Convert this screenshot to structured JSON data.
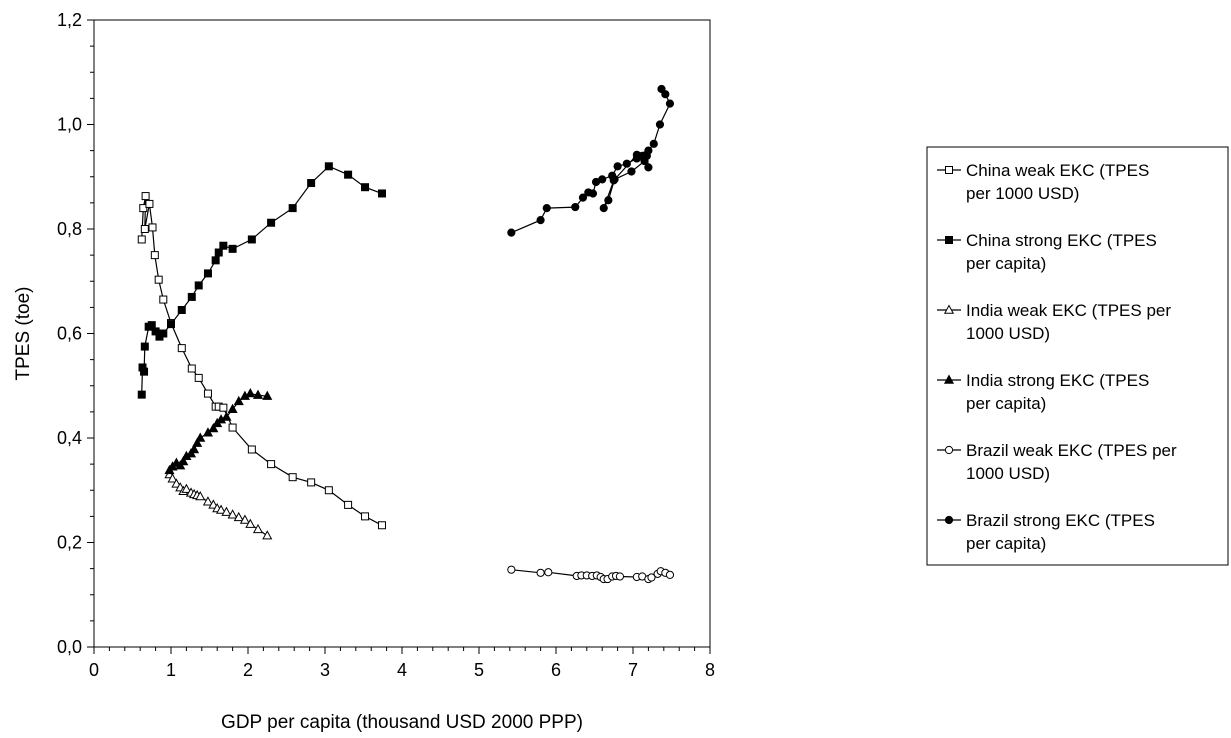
{
  "chart_data": {
    "type": "scatter",
    "xlabel": "GDP per capita (thousand USD 2000 PPP)",
    "ylabel": "TPES (toe)",
    "xlim": [
      0,
      8
    ],
    "ylim": [
      0,
      1.2
    ],
    "x_ticks": [
      "0",
      "1",
      "2",
      "3",
      "4",
      "5",
      "6",
      "7",
      "8"
    ],
    "y_ticks": [
      "0,0",
      "0,2",
      "0,4",
      "0,6",
      "0,8",
      "1,0",
      "1,2"
    ],
    "grid": false,
    "legend_position": "right",
    "series": [
      {
        "name": "China weak EKC (TPES per 1000 USD)",
        "legend_lines": [
          "China weak EKC (TPES",
          "per 1000 USD)"
        ],
        "marker": "square-open",
        "points": [
          [
            0.62,
            0.78
          ],
          [
            0.64,
            0.84
          ],
          [
            0.67,
            0.863
          ],
          [
            0.66,
            0.8
          ],
          [
            0.72,
            0.848
          ],
          [
            0.76,
            0.803
          ],
          [
            0.79,
            0.75
          ],
          [
            0.84,
            0.703
          ],
          [
            0.9,
            0.665
          ],
          [
            1.0,
            0.62
          ],
          [
            1.14,
            0.572
          ],
          [
            1.27,
            0.533
          ],
          [
            1.36,
            0.515
          ],
          [
            1.48,
            0.485
          ],
          [
            1.58,
            0.46
          ],
          [
            1.62,
            0.46
          ],
          [
            1.68,
            0.458
          ],
          [
            1.8,
            0.42
          ],
          [
            2.05,
            0.378
          ],
          [
            2.3,
            0.35
          ],
          [
            2.58,
            0.325
          ],
          [
            2.82,
            0.315
          ],
          [
            3.05,
            0.3
          ],
          [
            3.3,
            0.272
          ],
          [
            3.52,
            0.25
          ],
          [
            3.74,
            0.233
          ]
        ]
      },
      {
        "name": "China strong EKC (TPES per capita)",
        "legend_lines": [
          "China strong EKC (TPES",
          "per capita)"
        ],
        "marker": "square-filled",
        "points": [
          [
            0.62,
            0.483
          ],
          [
            0.63,
            0.535
          ],
          [
            0.65,
            0.527
          ],
          [
            0.66,
            0.575
          ],
          [
            0.71,
            0.613
          ],
          [
            0.75,
            0.616
          ],
          [
            0.8,
            0.604
          ],
          [
            0.85,
            0.594
          ],
          [
            0.9,
            0.6
          ],
          [
            1.0,
            0.618
          ],
          [
            1.14,
            0.645
          ],
          [
            1.27,
            0.67
          ],
          [
            1.36,
            0.692
          ],
          [
            1.48,
            0.715
          ],
          [
            1.58,
            0.74
          ],
          [
            1.62,
            0.755
          ],
          [
            1.68,
            0.768
          ],
          [
            1.8,
            0.762
          ],
          [
            2.05,
            0.78
          ],
          [
            2.3,
            0.812
          ],
          [
            2.58,
            0.84
          ],
          [
            2.82,
            0.888
          ],
          [
            3.05,
            0.92
          ],
          [
            3.3,
            0.904
          ],
          [
            3.52,
            0.88
          ],
          [
            3.74,
            0.868
          ]
        ]
      },
      {
        "name": "India weak EKC (TPES per 1000 USD)",
        "legend_lines": [
          "India weak EKC (TPES per",
          "1000 USD)"
        ],
        "marker": "triangle-open",
        "points": [
          [
            0.98,
            0.33
          ],
          [
            1.02,
            0.322
          ],
          [
            1.07,
            0.312
          ],
          [
            1.12,
            0.305
          ],
          [
            1.16,
            0.298
          ],
          [
            1.2,
            0.302
          ],
          [
            1.26,
            0.295
          ],
          [
            1.3,
            0.292
          ],
          [
            1.34,
            0.29
          ],
          [
            1.38,
            0.288
          ],
          [
            1.48,
            0.278
          ],
          [
            1.55,
            0.272
          ],
          [
            1.6,
            0.265
          ],
          [
            1.65,
            0.262
          ],
          [
            1.72,
            0.258
          ],
          [
            1.8,
            0.253
          ],
          [
            1.88,
            0.248
          ],
          [
            1.96,
            0.243
          ],
          [
            2.03,
            0.235
          ],
          [
            2.13,
            0.225
          ],
          [
            2.25,
            0.213
          ]
        ]
      },
      {
        "name": "India strong EKC (TPES per capita)",
        "legend_lines": [
          "India strong EKC (TPES",
          "per capita)"
        ],
        "marker": "triangle-filled",
        "points": [
          [
            0.98,
            0.338
          ],
          [
            1.02,
            0.345
          ],
          [
            1.07,
            0.352
          ],
          [
            1.12,
            0.347
          ],
          [
            1.16,
            0.355
          ],
          [
            1.2,
            0.365
          ],
          [
            1.26,
            0.37
          ],
          [
            1.3,
            0.378
          ],
          [
            1.34,
            0.39
          ],
          [
            1.38,
            0.4
          ],
          [
            1.48,
            0.41
          ],
          [
            1.55,
            0.418
          ],
          [
            1.6,
            0.428
          ],
          [
            1.65,
            0.435
          ],
          [
            1.72,
            0.44
          ],
          [
            1.8,
            0.455
          ],
          [
            1.88,
            0.47
          ],
          [
            1.96,
            0.48
          ],
          [
            2.03,
            0.485
          ],
          [
            2.13,
            0.482
          ],
          [
            2.25,
            0.48
          ]
        ]
      },
      {
        "name": "Brazil weak EKC (TPES per 1000 USD)",
        "legend_lines": [
          "Brazil weak EKC (TPES per",
          "1000 USD)"
        ],
        "marker": "circle-open",
        "points": [
          [
            5.42,
            0.148
          ],
          [
            5.8,
            0.142
          ],
          [
            5.9,
            0.143
          ],
          [
            6.27,
            0.136
          ],
          [
            6.33,
            0.137
          ],
          [
            6.4,
            0.137
          ],
          [
            6.47,
            0.136
          ],
          [
            6.53,
            0.137
          ],
          [
            6.58,
            0.134
          ],
          [
            6.62,
            0.13
          ],
          [
            6.67,
            0.13
          ],
          [
            6.73,
            0.135
          ],
          [
            6.78,
            0.136
          ],
          [
            6.83,
            0.135
          ],
          [
            7.05,
            0.134
          ],
          [
            7.12,
            0.135
          ],
          [
            7.2,
            0.13
          ],
          [
            7.24,
            0.133
          ],
          [
            7.32,
            0.14
          ],
          [
            7.36,
            0.145
          ],
          [
            7.42,
            0.142
          ],
          [
            7.48,
            0.138
          ]
        ]
      },
      {
        "name": "Brazil strong EKC (TPES per capita)",
        "legend_lines": [
          "Brazil strong EKC (TPES",
          "per capita)"
        ],
        "marker": "circle-filled",
        "points": [
          [
            5.42,
            0.793
          ],
          [
            5.8,
            0.817
          ],
          [
            5.88,
            0.84
          ],
          [
            6.25,
            0.842
          ],
          [
            6.35,
            0.86
          ],
          [
            6.42,
            0.87
          ],
          [
            6.48,
            0.868
          ],
          [
            6.52,
            0.89
          ],
          [
            6.6,
            0.895
          ],
          [
            6.73,
            0.902
          ],
          [
            6.8,
            0.92
          ],
          [
            6.92,
            0.925
          ],
          [
            7.05,
            0.935
          ],
          [
            7.12,
            0.94
          ],
          [
            7.2,
            0.918
          ],
          [
            7.18,
            0.94
          ],
          [
            7.15,
            0.93
          ],
          [
            6.98,
            0.91
          ],
          [
            6.76,
            0.895
          ],
          [
            6.68,
            0.855
          ],
          [
            6.62,
            0.84
          ],
          [
            6.75,
            0.893
          ],
          [
            7.05,
            0.942
          ],
          [
            7.2,
            0.95
          ],
          [
            7.27,
            0.963
          ],
          [
            7.35,
            1.0
          ],
          [
            7.48,
            1.04
          ],
          [
            7.42,
            1.058
          ],
          [
            7.37,
            1.068
          ]
        ]
      }
    ]
  }
}
